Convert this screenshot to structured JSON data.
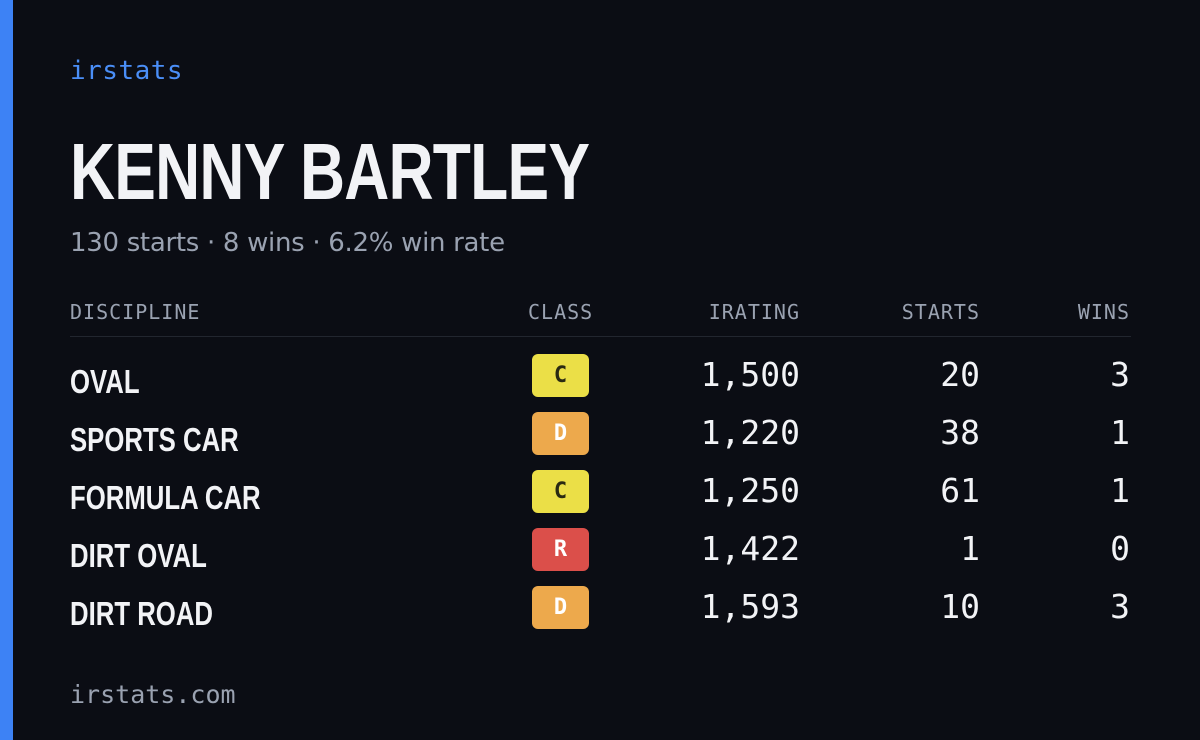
{
  "brand": "irstats",
  "driver": {
    "name": "KENNY BARTLEY",
    "summary": "130 starts · 8 wins · 6.2% win rate"
  },
  "table": {
    "headers": {
      "discipline": "DISCIPLINE",
      "class": "CLASS",
      "irating": "IRATING",
      "starts": "STARTS",
      "wins": "WINS"
    },
    "rows": [
      {
        "discipline": "OVAL",
        "class": "C",
        "class_color": "#ebdf47",
        "class_text_color": "#2a2a12",
        "irating": "1,500",
        "starts": "20",
        "wins": "3"
      },
      {
        "discipline": "SPORTS CAR",
        "class": "D",
        "class_color": "#eda94c",
        "class_text_color": "#ffffff",
        "irating": "1,220",
        "starts": "38",
        "wins": "1"
      },
      {
        "discipline": "FORMULA CAR",
        "class": "C",
        "class_color": "#ebdf47",
        "class_text_color": "#2a2a12",
        "irating": "1,250",
        "starts": "61",
        "wins": "1"
      },
      {
        "discipline": "DIRT OVAL",
        "class": "R",
        "class_color": "#db4f4a",
        "class_text_color": "#ffffff",
        "irating": "1,422",
        "starts": "1",
        "wins": "0"
      },
      {
        "discipline": "DIRT ROAD",
        "class": "D",
        "class_color": "#eda94c",
        "class_text_color": "#ffffff",
        "irating": "1,593",
        "starts": "10",
        "wins": "3"
      }
    ]
  },
  "footer": {
    "url": "irstats.com"
  },
  "colors": {
    "background": "#0b0d14",
    "accent": "#3d82f5",
    "brand": "#4a8ef7",
    "text_primary": "#f2f3f6",
    "text_muted": "#9aa2b1"
  }
}
